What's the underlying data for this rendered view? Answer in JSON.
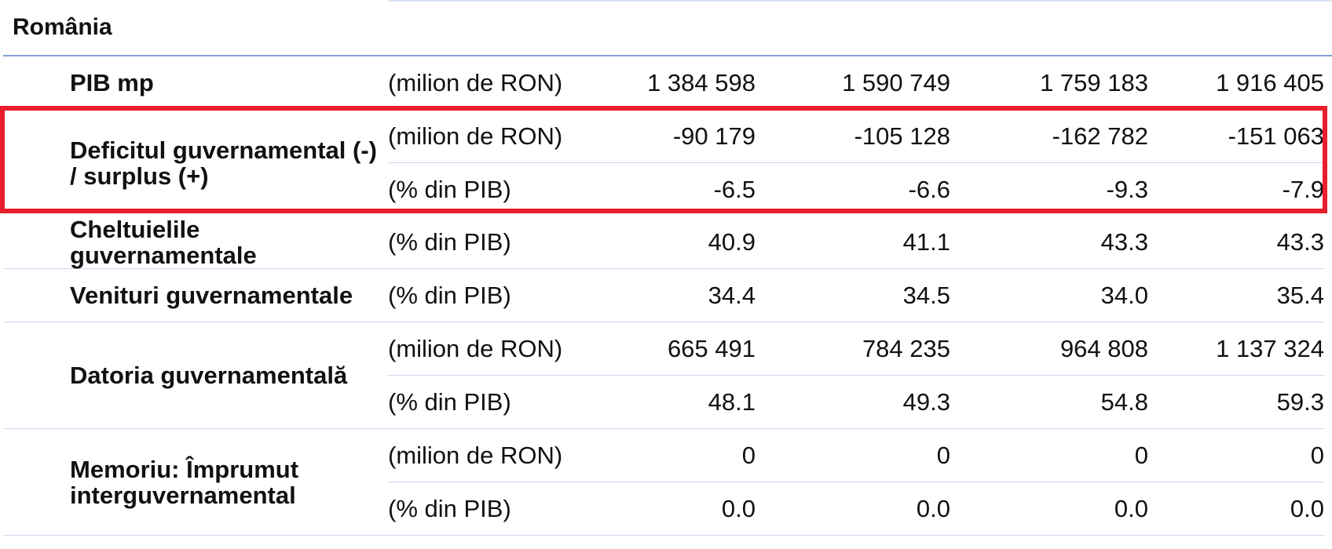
{
  "country": "România",
  "rows": [
    {
      "label": "PIB mp",
      "unit": "(milion de RON)",
      "values": [
        "1 384 598",
        "1 590 749",
        "1 759 183",
        "1 916 405"
      ]
    },
    {
      "label": "Deficitul guvernamental (-) / surplus (+)",
      "unit": "(milion de RON)",
      "values": [
        "-90 179",
        "-105 128",
        "-162 782",
        "-151 063"
      ]
    },
    {
      "unit": "(% din PIB)",
      "values": [
        "-6.5",
        "-6.6",
        "-9.3",
        "-7.9"
      ]
    },
    {
      "label": "Cheltuielile guvernamentale",
      "unit": "(% din PIB)",
      "values": [
        "40.9",
        "41.1",
        "43.3",
        "43.3"
      ]
    },
    {
      "label": "Venituri guvernamentale",
      "unit": "(% din PIB)",
      "values": [
        "34.4",
        "34.5",
        "34.0",
        "35.4"
      ]
    },
    {
      "label": "Datoria guvernamentală",
      "unit": "(milion de RON)",
      "values": [
        "665 491",
        "784 235",
        "964 808",
        "1 137 324"
      ]
    },
    {
      "unit": "(% din PIB)",
      "values": [
        "48.1",
        "49.3",
        "54.8",
        "59.3"
      ]
    },
    {
      "label": "Memoriu: Împrumut interguvernamental",
      "unit": "(milion de RON)",
      "values": [
        "0",
        "0",
        "0",
        "0"
      ]
    },
    {
      "unit": "(% din PIB)",
      "values": [
        "0.0",
        "0.0",
        "0.0",
        "0.0"
      ]
    }
  ],
  "highlight_color": "#e81e2a"
}
